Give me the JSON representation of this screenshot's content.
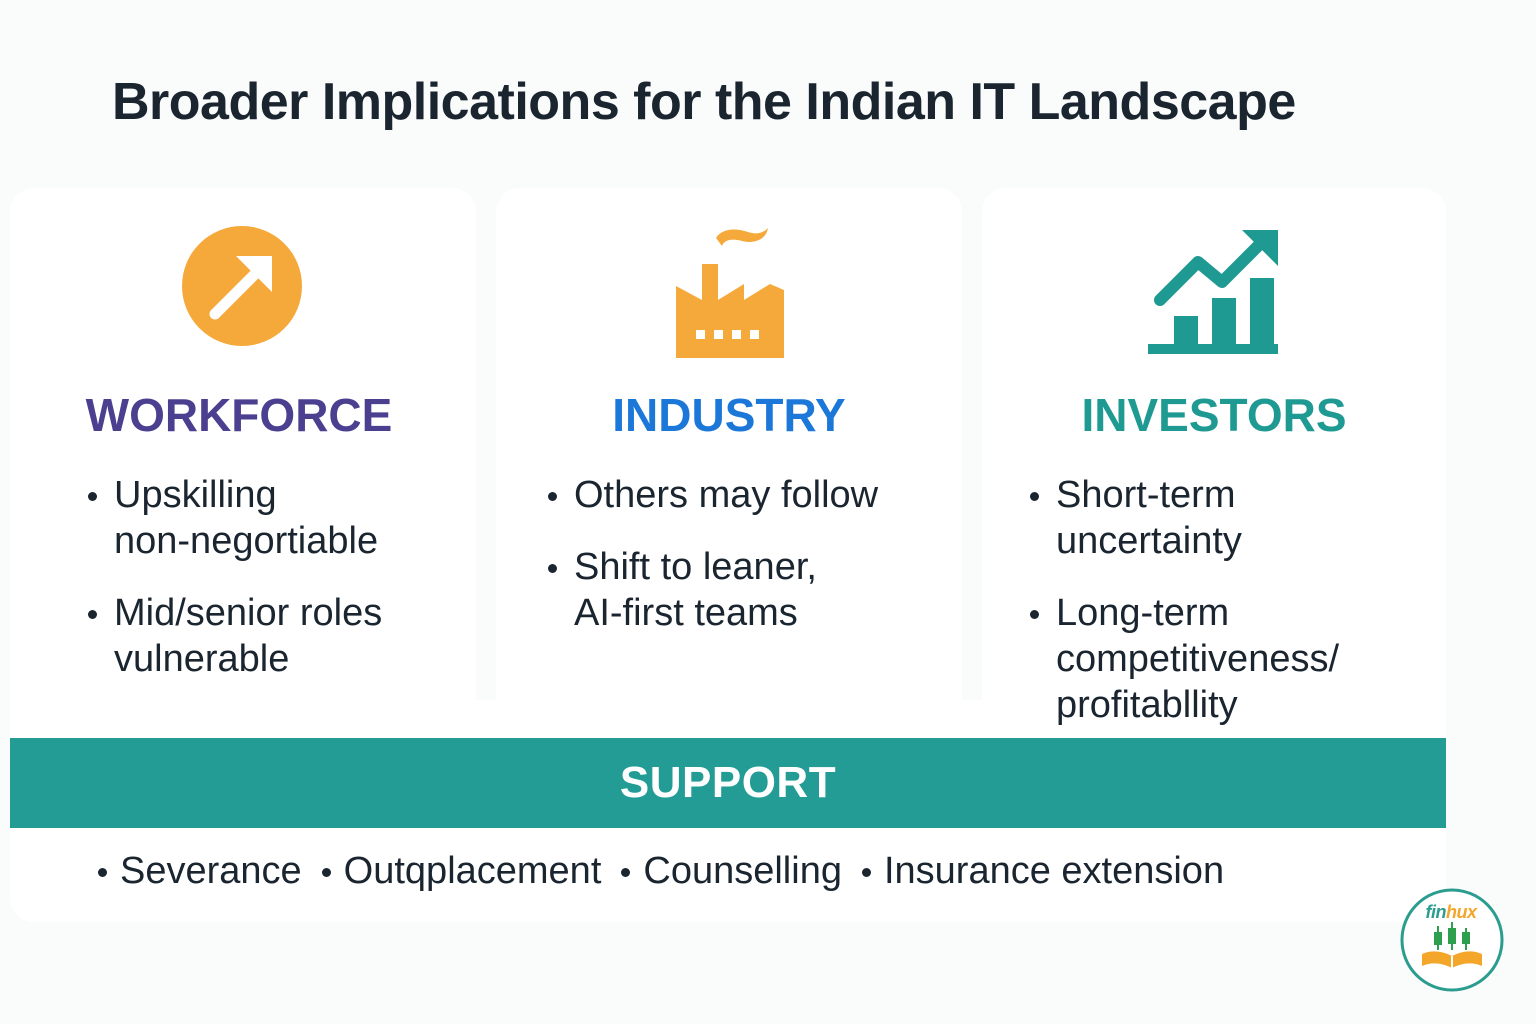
{
  "title": "Broader Implications for the Indian IT Landscape",
  "colors": {
    "workforce": "#4b3f8f",
    "industry": "#1b78d8",
    "investors": "#1f9a92",
    "orange_icon": "#f6a93b",
    "teal_band": "#239c96"
  },
  "cards": [
    {
      "icon": "arrow-up-right-circle-icon",
      "heading": "WORKFORCE",
      "bullets": [
        [
          "Upskilling",
          "non-negortiable"
        ],
        [
          "Mid/senior roles",
          "vulnerable"
        ]
      ]
    },
    {
      "icon": "factory-icon",
      "heading": "INDUSTRY",
      "bullets": [
        [
          "Others may follow"
        ],
        [
          "Shift to leaner,",
          "AI-first teams"
        ]
      ]
    },
    {
      "icon": "growth-chart-icon",
      "heading": "INVESTORS",
      "bullets": [
        [
          "Short-term",
          "uncertainty"
        ],
        [
          "Long-term",
          "competitiveness/",
          "profitabllity"
        ]
      ]
    }
  ],
  "support": {
    "title": "SUPPORT",
    "items": [
      "Severance",
      "Outqplacement",
      "Counselling",
      "Insurance extension"
    ]
  },
  "logo": {
    "text_a": "fin",
    "text_b": "hux",
    "icon": "candlestick-book-logo-icon"
  }
}
